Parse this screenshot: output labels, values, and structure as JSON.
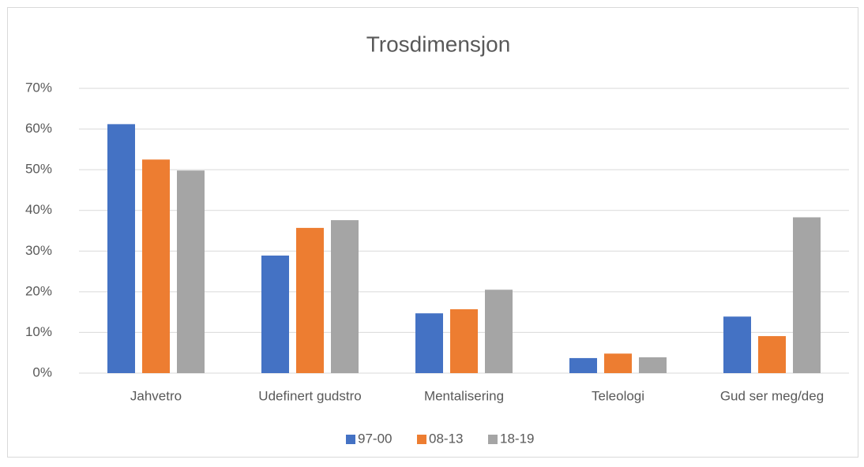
{
  "chart_data": {
    "type": "bar",
    "title": "Trosdimensjon",
    "categories": [
      "Jahvetro",
      "Udefinert gudstro",
      "Mentalisering",
      "Teleologi",
      "Gud ser meg/deg"
    ],
    "series": [
      {
        "name": "97-00",
        "color": "#4472c4",
        "values": [
          61.2,
          28.9,
          14.7,
          3.7,
          13.9
        ]
      },
      {
        "name": "08-13",
        "color": "#ed7d31",
        "values": [
          52.5,
          35.7,
          15.7,
          4.8,
          9.1
        ]
      },
      {
        "name": "18-19",
        "color": "#a5a5a5",
        "values": [
          49.8,
          37.6,
          20.5,
          3.9,
          38.3
        ]
      }
    ],
    "ylim": [
      0,
      70
    ],
    "yticks": [
      {
        "value": 0,
        "label": "0%"
      },
      {
        "value": 10,
        "label": "10%"
      },
      {
        "value": 20,
        "label": "20%"
      },
      {
        "value": 30,
        "label": "30%"
      },
      {
        "value": 40,
        "label": "40%"
      },
      {
        "value": 50,
        "label": "50%"
      },
      {
        "value": 60,
        "label": "60%"
      },
      {
        "value": 70,
        "label": "70%"
      }
    ],
    "grid": true,
    "legend": "bottom"
  }
}
